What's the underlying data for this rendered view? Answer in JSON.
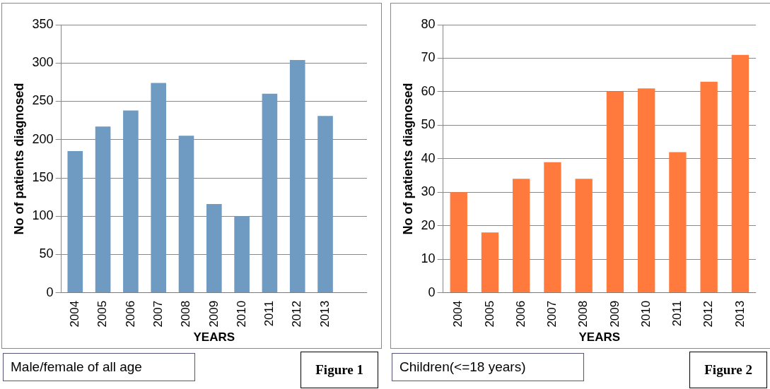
{
  "chart_data": [
    {
      "type": "bar",
      "xlabel": "YEARS",
      "ylabel": "No of patients diagnosed",
      "categories": [
        "2004",
        "2005",
        "2006",
        "2007",
        "2008",
        "2009",
        "2010",
        "2011",
        "2012",
        "2013",
        null
      ],
      "values": [
        185,
        217,
        238,
        274,
        205,
        116,
        100,
        260,
        304,
        231,
        null
      ],
      "color": "#6f9bc2",
      "ylim": [
        0,
        350
      ],
      "yticks": [
        0,
        50,
        100,
        150,
        200,
        250,
        300,
        350
      ],
      "grid": "y",
      "legend": false,
      "annotations": [
        "Male/female of all age",
        "Figure 1"
      ]
    },
    {
      "type": "bar",
      "xlabel": "YEARS",
      "ylabel": "No of patients diagnosed",
      "categories": [
        "2004",
        "2005",
        "2006",
        "2007",
        "2008",
        "2009",
        "2010",
        "2011",
        "2012",
        "2013"
      ],
      "values": [
        30,
        18,
        34,
        39,
        34,
        60,
        61,
        42,
        63,
        71
      ],
      "color": "#ff7a3c",
      "ylim": [
        0,
        80
      ],
      "yticks": [
        0,
        10,
        20,
        30,
        40,
        50,
        60,
        70,
        80
      ],
      "grid": "y",
      "legend": false,
      "annotations": [
        "Children(<=18 years)",
        "Figure 2"
      ]
    }
  ]
}
